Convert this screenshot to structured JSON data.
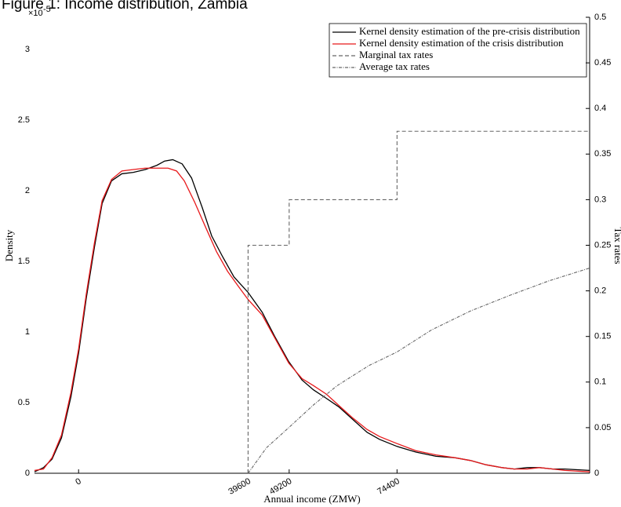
{
  "chart_data": {
    "type": "line",
    "title": "Figure 1: Income distribution, Zambia",
    "x_label": "Annual income (ZMW)",
    "y_label": "Density",
    "y2_label": "Tax rates",
    "y_exponent_base": "×10",
    "y_exponent": "-5",
    "xlim": [
      -10300,
      119400
    ],
    "xticks": [
      0,
      39600,
      49200,
      74400
    ],
    "ylim": [
      0,
      3.228
    ],
    "yticks": [
      0,
      0.5,
      1,
      1.5,
      2,
      2.5,
      3
    ],
    "y2lim": [
      0,
      0.5
    ],
    "y2ticks": [
      0,
      0.05,
      0.1,
      0.15,
      0.2,
      0.25,
      0.3,
      0.35,
      0.4,
      0.45,
      0.5
    ],
    "legend": "upper right",
    "series": [
      {
        "name": "Kernel density estimation of the pre-crisis distribution",
        "color": "#000000",
        "line_style": "solid",
        "x": [
          -10300,
          -8200,
          -6200,
          -4000,
          -1800,
          0,
          1800,
          3700,
          5500,
          7700,
          10100,
          12800,
          15600,
          18300,
          20100,
          22000,
          24200,
          26400,
          28900,
          31100,
          33700,
          36300,
          39600,
          42900,
          45800,
          49100,
          52200,
          54900,
          57900,
          60800,
          64100,
          67400,
          70300,
          74400,
          78800,
          83500,
          87900,
          91600,
          95200,
          98900,
          101800,
          104800,
          107700,
          110800,
          113600,
          119400
        ],
        "values": [
          0.01,
          0.04,
          0.1,
          0.25,
          0.54,
          0.85,
          1.24,
          1.6,
          1.91,
          2.07,
          2.12,
          2.13,
          2.15,
          2.18,
          2.21,
          2.22,
          2.19,
          2.09,
          1.88,
          1.68,
          1.53,
          1.39,
          1.28,
          1.14,
          0.97,
          0.79,
          0.66,
          0.59,
          0.53,
          0.47,
          0.38,
          0.29,
          0.24,
          0.19,
          0.15,
          0.12,
          0.11,
          0.09,
          0.06,
          0.04,
          0.03,
          0.04,
          0.04,
          0.03,
          0.03,
          0.02
        ]
      },
      {
        "name": "Kernel density estimation of the crisis distribution",
        "color": "#e8191b",
        "line_style": "solid",
        "x": [
          -10300,
          -8200,
          -6200,
          -4000,
          -1800,
          0,
          1800,
          3700,
          5500,
          7700,
          10100,
          12800,
          15600,
          18300,
          20900,
          22900,
          24700,
          27100,
          29700,
          32200,
          34800,
          37400,
          39600,
          42900,
          45800,
          49100,
          52200,
          54900,
          57900,
          60800,
          64100,
          67400,
          70300,
          74400,
          78800,
          83500,
          87900,
          91600,
          95200,
          98900,
          101800,
          104800,
          107700,
          110800,
          113600,
          119400
        ],
        "values": [
          0.02,
          0.03,
          0.11,
          0.27,
          0.57,
          0.88,
          1.27,
          1.63,
          1.93,
          2.08,
          2.14,
          2.15,
          2.16,
          2.16,
          2.16,
          2.14,
          2.07,
          1.92,
          1.74,
          1.57,
          1.43,
          1.32,
          1.23,
          1.12,
          0.96,
          0.78,
          0.67,
          0.62,
          0.56,
          0.48,
          0.39,
          0.31,
          0.26,
          0.21,
          0.16,
          0.13,
          0.11,
          0.09,
          0.06,
          0.04,
          0.03,
          0.03,
          0.04,
          0.03,
          0.02,
          0.01
        ]
      },
      {
        "name": "Marginal tax rates",
        "color": "#666666",
        "line_style": "dashed",
        "axis": "y2",
        "x": [
          39600,
          39600,
          49200,
          49200,
          74400,
          74400,
          119400
        ],
        "values": [
          0,
          0.25,
          0.25,
          0.3,
          0.3,
          0.375,
          0.375
        ]
      },
      {
        "name": "Average tax rates",
        "color": "#666666",
        "line_style": "dashdot",
        "axis": "y2",
        "x": [
          39600,
          43900,
          49100,
          54900,
          60400,
          67800,
          74400,
          82400,
          91600,
          100700,
          109900,
          119400
        ],
        "values": [
          0,
          0.028,
          0.05,
          0.075,
          0.096,
          0.118,
          0.133,
          0.157,
          0.178,
          0.195,
          0.211,
          0.225
        ]
      }
    ]
  }
}
